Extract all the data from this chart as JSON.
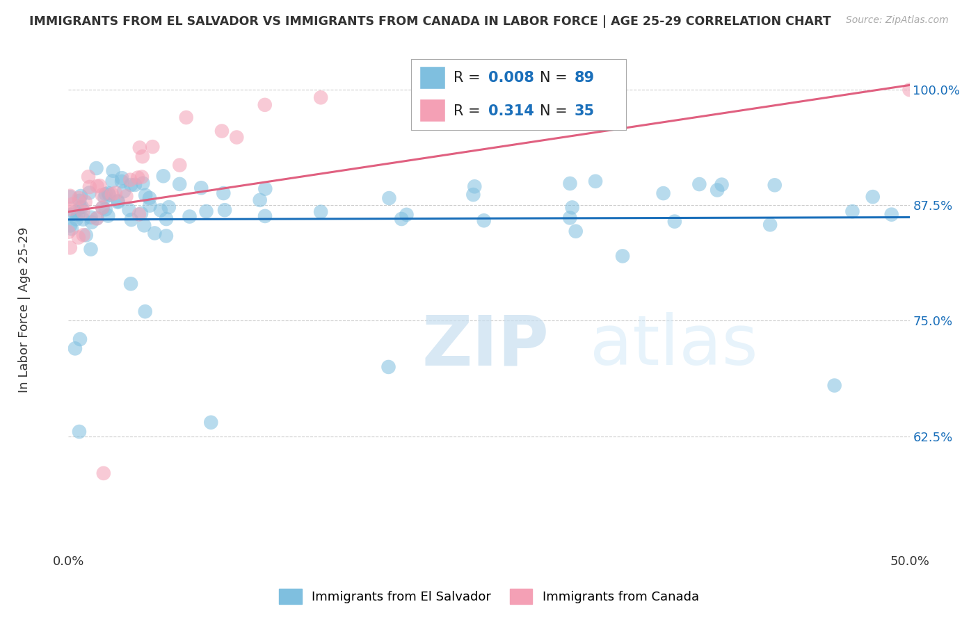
{
  "title": "IMMIGRANTS FROM EL SALVADOR VS IMMIGRANTS FROM CANADA IN LABOR FORCE | AGE 25-29 CORRELATION CHART",
  "source": "Source: ZipAtlas.com",
  "ylabel": "In Labor Force | Age 25-29",
  "xlim": [
    0.0,
    0.5
  ],
  "ylim": [
    0.5,
    1.03
  ],
  "yticks": [
    0.625,
    0.75,
    0.875,
    1.0
  ],
  "yticklabels": [
    "62.5%",
    "75.0%",
    "87.5%",
    "100.0%"
  ],
  "blue_R": 0.008,
  "blue_N": 89,
  "pink_R": 0.314,
  "pink_N": 35,
  "blue_color": "#7fbfdf",
  "pink_color": "#f4a0b5",
  "blue_line_color": "#1a6fba",
  "pink_line_color": "#e06080",
  "legend_label_blue": "Immigrants from El Salvador",
  "legend_label_pink": "Immigrants from Canada",
  "watermark_zip": "ZIP",
  "watermark_atlas": "atlas",
  "background_color": "#ffffff",
  "grid_color": "#cccccc"
}
